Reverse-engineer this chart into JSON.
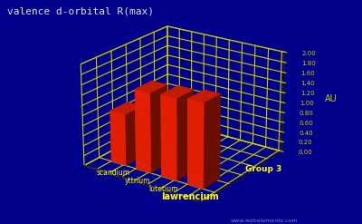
{
  "title": "valence d-orbital R(max)",
  "elements": [
    "scandium",
    "yttrium",
    "lutetium",
    "lawrencium"
  ],
  "values": [
    1.02,
    1.57,
    1.6,
    1.65
  ],
  "ylabel": "AU",
  "xlabel": "Group 3",
  "ylim": [
    0.0,
    2.0
  ],
  "yticks": [
    0.0,
    0.2,
    0.4,
    0.6,
    0.8,
    1.0,
    1.2,
    1.4,
    1.6,
    1.8,
    2.0
  ],
  "bar_color_top": "#ff2200",
  "bar_color_dark": "#991100",
  "background_color": "#00008b",
  "grid_color": "#cccc00",
  "text_color": "#ffff00",
  "title_color": "#e0e0e0",
  "watermark": "www.webelements.com",
  "watermark_color": "#7799cc",
  "figsize": [
    4.0,
    2.47
  ],
  "dpi": 100,
  "elev": 22,
  "azim": -55
}
